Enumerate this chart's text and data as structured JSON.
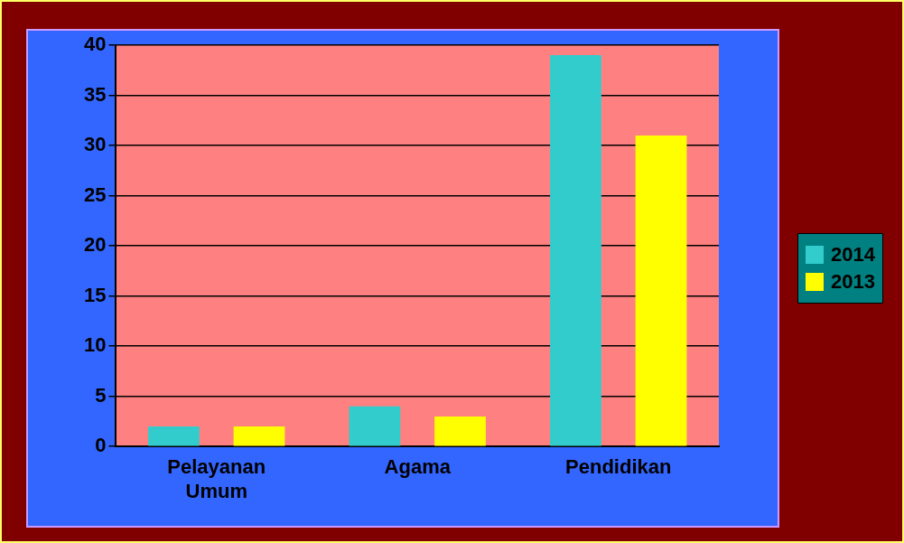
{
  "chart_data": {
    "type": "bar",
    "categories": [
      "Pelayanan Umum",
      "Agama",
      "Pendidikan"
    ],
    "series": [
      {
        "name": "2014",
        "color": "#33cccc",
        "values": [
          2,
          4,
          39
        ]
      },
      {
        "name": "2013",
        "color": "#ffff00",
        "values": [
          2,
          3,
          31
        ]
      }
    ],
    "ylim": [
      0,
      40
    ],
    "yticks": [
      0,
      5,
      10,
      15,
      20,
      25,
      30,
      35,
      40
    ],
    "grid": "y",
    "legend": "right"
  }
}
